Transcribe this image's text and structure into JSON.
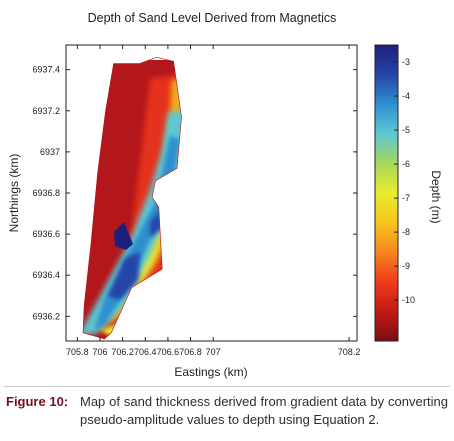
{
  "chart_data": {
    "type": "heatmap",
    "title": "Depth of Sand Level Derived from Magnetics",
    "xlabel": "Eastings (km)",
    "ylabel": "Northings (km)",
    "xlim": [
      705.7,
      708.27
    ],
    "ylim": [
      6936.08,
      6937.52
    ],
    "x_ticks": [
      705.8,
      706,
      706.2,
      706.4,
      706.6,
      706.8,
      707,
      708.2
    ],
    "x_tick_labels": [
      "705.8",
      "706",
      "706.2",
      "706.4",
      "706.6",
      "706.8",
      "707",
      "708.2"
    ],
    "y_ticks": [
      6936.2,
      6936.4,
      6936.6,
      6936.8,
      6937,
      6937.2,
      6937.4
    ],
    "y_tick_labels": [
      "6936.2",
      "6936.4",
      "6936.6",
      "6936.8",
      "6937",
      "6937.2",
      "6937.4"
    ],
    "colorbar": {
      "label": "Depth (m)",
      "range": [
        -11.2,
        -2.5
      ],
      "ticks": [
        -3,
        -4,
        -5,
        -6,
        -7,
        -8,
        -9,
        -10
      ],
      "tick_labels": [
        "-3",
        "-4",
        "-5",
        "-6",
        "-7",
        "-8",
        "-9",
        "-10"
      ],
      "colors": [
        "#7d0d12",
        "#c01a16",
        "#ef3b1c",
        "#f6861f",
        "#f6c51e",
        "#e9ec2b",
        "#a6d85a",
        "#5cc8d2",
        "#2f8fd0",
        "#2545a8",
        "#1d1f7c"
      ]
    },
    "grid": false,
    "survey_outline_km": [
      [
        705.85,
        6936.12
      ],
      [
        706.04,
        6936.09
      ],
      [
        706.1,
        6936.12
      ],
      [
        706.28,
        6936.34
      ],
      [
        706.55,
        6936.43
      ],
      [
        706.52,
        6936.73
      ],
      [
        706.46,
        6936.78
      ],
      [
        706.49,
        6936.86
      ],
      [
        706.68,
        6936.92
      ],
      [
        706.72,
        6937.17
      ],
      [
        706.65,
        6937.44
      ],
      [
        706.5,
        6937.46
      ],
      [
        706.35,
        6937.43
      ],
      [
        706.12,
        6937.43
      ],
      [
        706.05,
        6937.2
      ],
      [
        705.98,
        6936.9
      ],
      [
        705.92,
        6936.55
      ],
      [
        705.86,
        6936.25
      ]
    ],
    "shallow_zones_m": -3.2,
    "deep_channel_m": -8,
    "deepest_m": -10.5
  },
  "caption": {
    "label": "Figure 10:",
    "text": "Map of sand thickness derived from gradient data by converting pseudo-amplitude values to depth using Equation 2."
  }
}
